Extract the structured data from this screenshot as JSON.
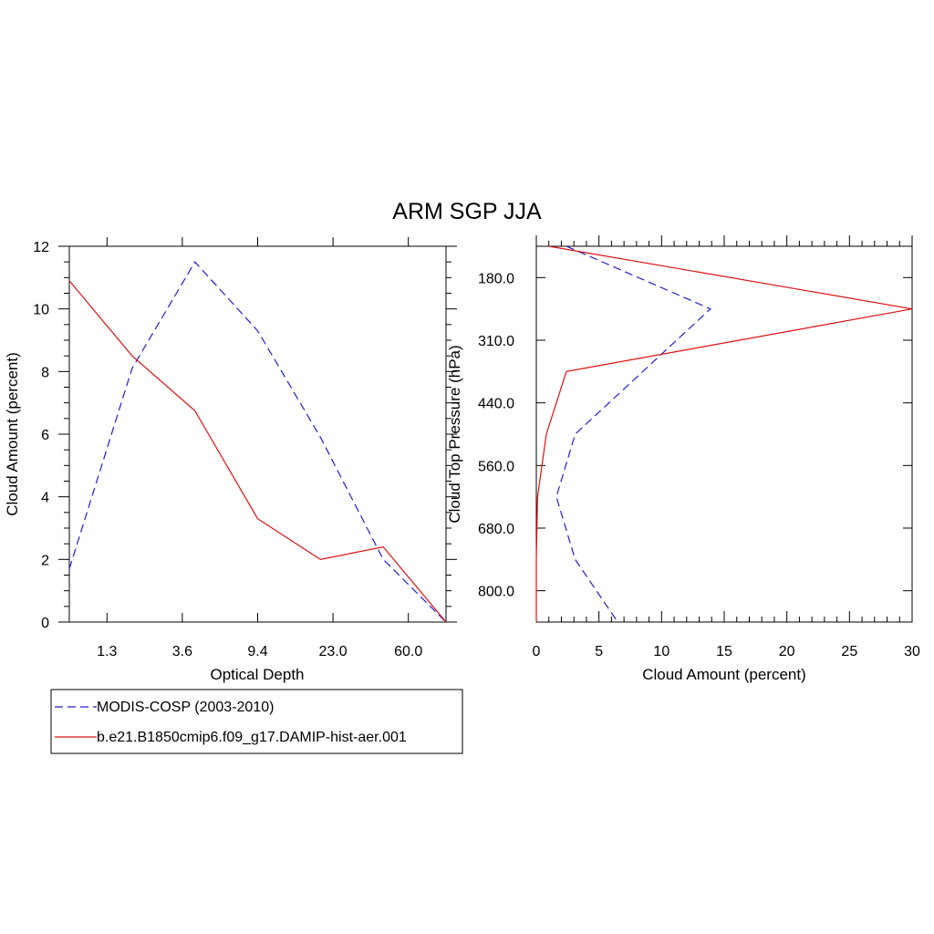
{
  "figure": {
    "title": "ARM SGP JJA"
  },
  "chart_data": [
    {
      "type": "line",
      "xlabel": "Optical Depth",
      "ylabel": "Cloud Amount (percent)",
      "x_tick_labels": [
        "1.3",
        "3.6",
        "9.4",
        "23.0",
        "60.0"
      ],
      "y_ticks": [
        0,
        2,
        4,
        6,
        8,
        10,
        12
      ],
      "ylim": [
        0,
        12
      ],
      "bins": 7,
      "series": [
        {
          "name": "MODIS-COSP (2003-2010)",
          "color": "#1f1fd6",
          "dash": true,
          "values": [
            1.7,
            8.1,
            11.5,
            9.3,
            5.9,
            2.0,
            0.0
          ]
        },
        {
          "name": "b.e21.B1850cmip6.f09_g17.DAMIP-hist-aer.001",
          "color": "#e01010",
          "dash": false,
          "values": [
            10.9,
            8.5,
            6.75,
            3.3,
            2.0,
            2.4,
            0.0
          ]
        }
      ]
    },
    {
      "type": "line",
      "xlabel": "Cloud Amount (percent)",
      "ylabel": "Cloud Top Pressure (hPa)",
      "x_ticks": [
        0,
        5,
        10,
        15,
        20,
        25,
        30
      ],
      "xlim": [
        0,
        30
      ],
      "y_tick_labels": [
        "180.0",
        "310.0",
        "440.0",
        "560.0",
        "680.0",
        "800.0"
      ],
      "pressure_levels": 7,
      "series": [
        {
          "name": "MODIS-COSP (2003-2010)",
          "color": "#1f1fd6",
          "dash": true,
          "values": [
            2.4,
            13.9,
            8.5,
            3.1,
            1.6,
            3.1,
            6.5
          ]
        },
        {
          "name": "b.e21.B1850cmip6.f09_g17.DAMIP-hist-aer.001",
          "color": "#e01010",
          "dash": false,
          "values": [
            1.0,
            30.0,
            2.4,
            0.8,
            0.1,
            0.0,
            0.0
          ]
        }
      ]
    }
  ],
  "legend": [
    {
      "label": "MODIS-COSP (2003-2010)",
      "color": "#1f1fd6",
      "dash": true
    },
    {
      "label": "b.e21.B1850cmip6.f09_g17.DAMIP-hist-aer.001",
      "color": "#e01010",
      "dash": false
    }
  ]
}
